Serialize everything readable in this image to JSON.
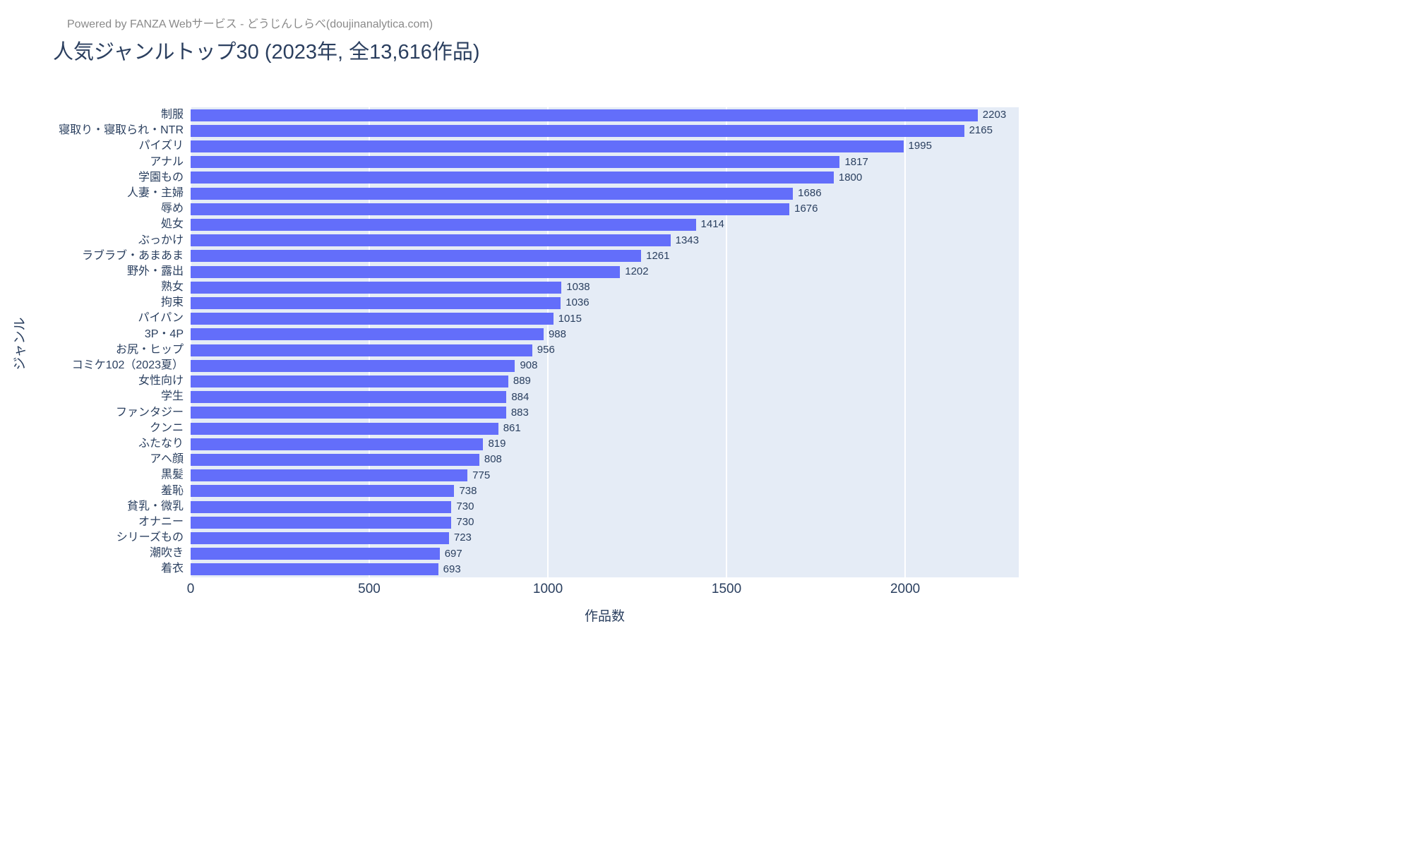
{
  "header": {
    "powered_by": "Powered by FANZA Webサービス - どうじんしらべ(doujinanalytica.com)"
  },
  "colors": {
    "bar": "#636EFA",
    "plot_background": "#E5ECF6",
    "text": "#2A3F5F",
    "gridline": "#FFFFFF",
    "powered_by_text": "#8A8A8A"
  },
  "chart_data": {
    "type": "bar",
    "orientation": "horizontal",
    "title": "人気ジャンルトップ30 (2023年, 全13,616作品)",
    "xlabel": "作品数",
    "ylabel": "ジャンル",
    "categories": [
      "制服",
      "寝取り・寝取られ・NTR",
      "パイズリ",
      "アナル",
      "学園もの",
      "人妻・主婦",
      "辱め",
      "処女",
      "ぶっかけ",
      "ラブラブ・あまあま",
      "野外・露出",
      "熟女",
      "拘束",
      "パイパン",
      "3P・4P",
      "お尻・ヒップ",
      "コミケ102（2023夏）",
      "女性向け",
      "学生",
      "ファンタジー",
      "クンニ",
      "ふたなり",
      "アヘ顔",
      "黒髪",
      "羞恥",
      "貧乳・微乳",
      "オナニー",
      "シリーズもの",
      "潮吹き",
      "着衣"
    ],
    "values": [
      2203,
      2165,
      1995,
      1817,
      1800,
      1686,
      1676,
      1414,
      1343,
      1261,
      1202,
      1038,
      1036,
      1015,
      988,
      956,
      908,
      889,
      884,
      883,
      861,
      819,
      808,
      775,
      738,
      730,
      730,
      723,
      697,
      693
    ],
    "xticks": [
      0,
      500,
      1000,
      1500,
      2000
    ],
    "xlim": [
      0,
      2318
    ],
    "grid": "on",
    "value_labels_position": "outside-right",
    "legend": "none"
  }
}
